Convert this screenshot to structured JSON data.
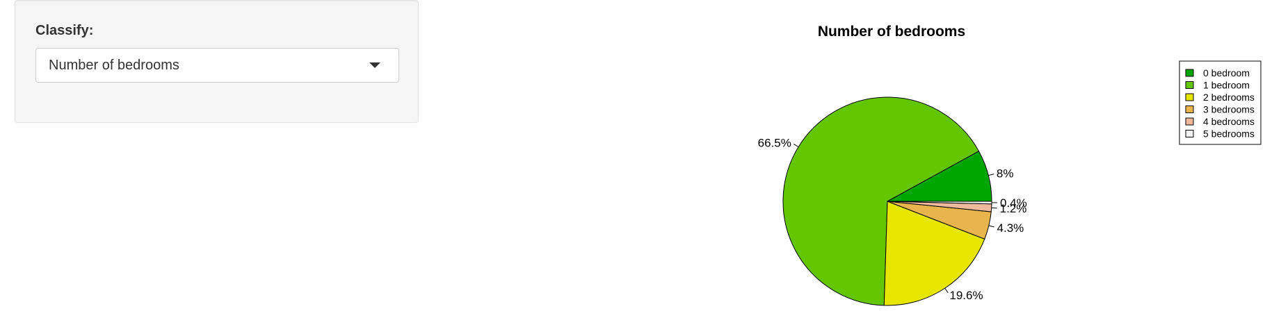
{
  "sidebar": {
    "label": "Classify:",
    "select": {
      "value": "Number of bedrooms"
    }
  },
  "chart_data": {
    "type": "pie",
    "title": "Number of bedrooms",
    "legend_position": "top-right",
    "slices": [
      {
        "label": "0 bedroom",
        "value": 8.0,
        "pct_label": "8%",
        "color": "#00a600"
      },
      {
        "label": "1 bedroom",
        "value": 66.5,
        "pct_label": "66.5%",
        "color": "#63c600"
      },
      {
        "label": "2 bedrooms",
        "value": 19.6,
        "pct_label": "19.6%",
        "color": "#e6e600"
      },
      {
        "label": "3 bedrooms",
        "value": 4.3,
        "pct_label": "4.3%",
        "color": "#e8b54d"
      },
      {
        "label": "4 bedrooms",
        "value": 1.2,
        "pct_label": "1.2%",
        "color": "#efb99e"
      },
      {
        "label": "5 bedrooms",
        "value": 0.4,
        "pct_label": "0.4%",
        "color": "#f2f2f2"
      }
    ]
  }
}
